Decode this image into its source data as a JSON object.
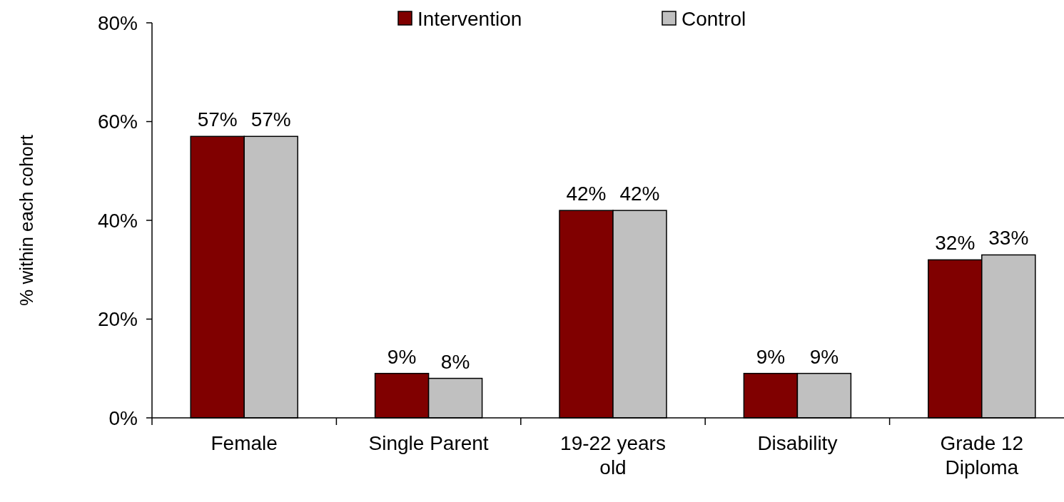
{
  "chart_data": {
    "type": "bar",
    "ylabel": "% within each cohort",
    "categories": [
      "Female",
      "Single Parent",
      "19-22 years old",
      "Disability",
      "Grade 12 Diploma"
    ],
    "series": [
      {
        "name": "Intervention",
        "color": "#800000",
        "values": [
          57,
          9,
          42,
          9,
          32
        ],
        "value_labels": [
          "57%",
          "9%",
          "42%",
          "9%",
          "32%"
        ]
      },
      {
        "name": "Control",
        "color": "#c0c0c0",
        "values": [
          57,
          8,
          42,
          9,
          33
        ],
        "value_labels": [
          "57%",
          "8%",
          "42%",
          "9%",
          "33%"
        ]
      }
    ],
    "ylim": [
      0,
      80
    ],
    "yticks": [
      {
        "value": 0,
        "label": "0%"
      },
      {
        "value": 20,
        "label": "20%"
      },
      {
        "value": 40,
        "label": "40%"
      },
      {
        "value": 60,
        "label": "60%"
      },
      {
        "value": 80,
        "label": "80%"
      }
    ],
    "grid": false,
    "legend": "top"
  }
}
